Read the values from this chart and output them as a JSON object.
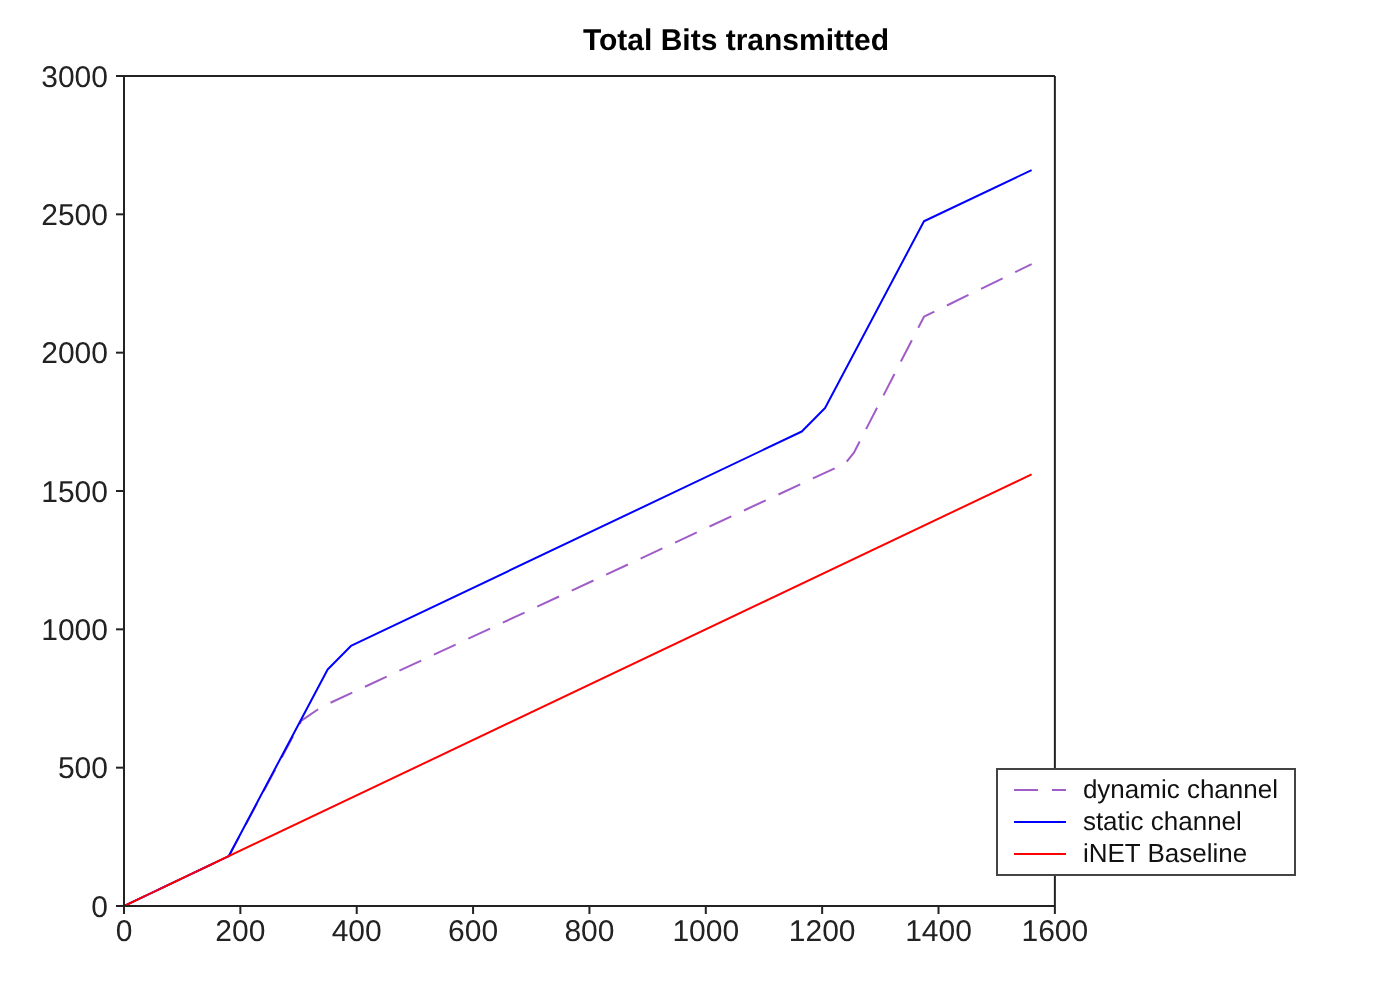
{
  "chart_data": {
    "type": "line",
    "title": "Total Bits transmitted",
    "xlim": [
      0,
      1600
    ],
    "xticks": [
      0,
      200,
      400,
      600,
      800,
      1000,
      1200,
      1400,
      1600
    ],
    "ylim": [
      0,
      3000
    ],
    "yticks": [
      0,
      500,
      1000,
      1500,
      2000,
      2500,
      3000
    ],
    "grid": false,
    "legend": "bottom right",
    "marker": "none",
    "series": [
      {
        "name": "dynamic channel",
        "color": "#a05cc8",
        "line_style": "dashed",
        "x": [
          0,
          180,
          305,
          340,
          1240,
          1255,
          1375,
          1560
        ],
        "values": [
          0,
          180,
          670,
          720,
          1600,
          1640,
          2130,
          2320
        ]
      },
      {
        "name": "static channel",
        "color": "#0000ff",
        "line_style": "solid",
        "x": [
          0,
          180,
          350,
          390,
          1165,
          1205,
          1375,
          1560
        ],
        "values": [
          0,
          180,
          855,
          940,
          1715,
          1800,
          2475,
          2660
        ]
      },
      {
        "name": "iNET Baseline",
        "color": "#ff0000",
        "line_style": "solid",
        "x": [
          0,
          1560
        ],
        "values": [
          0,
          1560
        ]
      }
    ]
  }
}
